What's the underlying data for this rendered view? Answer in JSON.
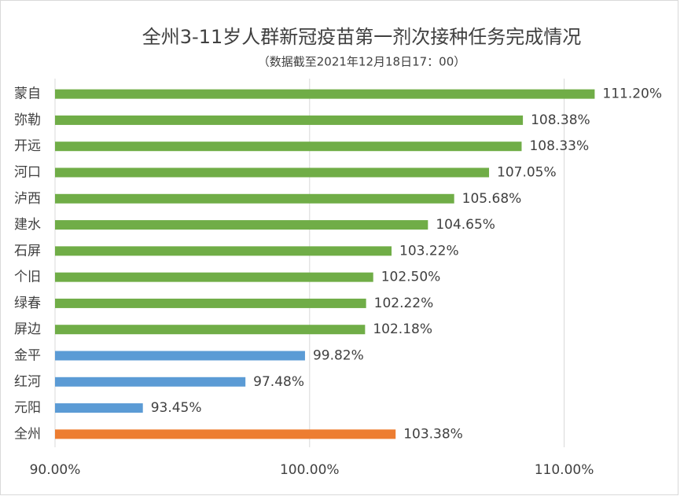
{
  "chart_data": {
    "type": "bar",
    "orientation": "horizontal",
    "title": "全州3-11岁人群新冠疫苗第一剂次接种任务完成情况",
    "subtitle": "（数据截至2021年12月18日17：00）",
    "categories": [
      "蒙自",
      "弥勒",
      "开远",
      "河口",
      "泸西",
      "建水",
      "石屏",
      "个旧",
      "绿春",
      "屏边",
      "金平",
      "红河",
      "元阳",
      "全州"
    ],
    "values": [
      111.2,
      108.38,
      108.33,
      107.05,
      105.68,
      104.65,
      103.22,
      102.5,
      102.22,
      102.18,
      99.82,
      97.48,
      93.45,
      103.38
    ],
    "value_labels": [
      "111.20%",
      "108.38%",
      "108.33%",
      "107.05%",
      "105.68%",
      "104.65%",
      "103.22%",
      "102.50%",
      "102.22%",
      "102.18%",
      "99.82%",
      "97.48%",
      "93.45%",
      "103.38%"
    ],
    "colors": [
      "#70ad47",
      "#70ad47",
      "#70ad47",
      "#70ad47",
      "#70ad47",
      "#70ad47",
      "#70ad47",
      "#70ad47",
      "#70ad47",
      "#70ad47",
      "#5b9bd5",
      "#5b9bd5",
      "#5b9bd5",
      "#ed7d31"
    ],
    "xlim": [
      90,
      114.4
    ],
    "xticks": [
      {
        "value": 90,
        "label": "90.00%"
      },
      {
        "value": 100,
        "label": "100.00%"
      },
      {
        "value": 110,
        "label": "110.00%"
      }
    ],
    "grid": true
  }
}
